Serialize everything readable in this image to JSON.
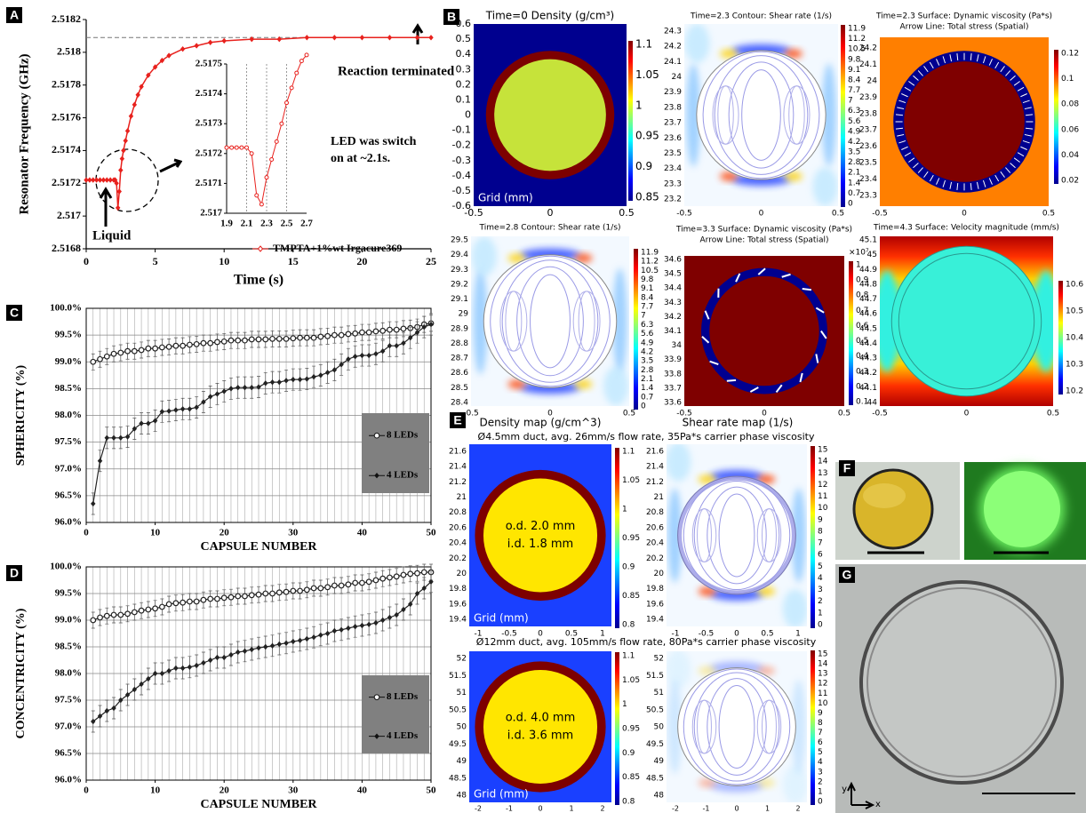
{
  "panel_labels": [
    "A",
    "B",
    "C",
    "D",
    "E",
    "F",
    "G"
  ],
  "chart_data": [
    {
      "type": "line",
      "xlabel": "Time (s)",
      "ylabel": "Resonator Frequency (GHz)",
      "x": [
        0,
        0.25,
        0.5,
        0.75,
        1,
        1.25,
        1.5,
        1.75,
        2,
        2.1,
        2.2,
        2.3,
        2.4,
        2.5,
        2.6,
        2.7,
        2.85,
        3,
        3.25,
        3.5,
        3.75,
        4,
        4.5,
        5,
        5.5,
        6,
        7,
        8,
        9,
        10,
        12,
        14,
        16,
        18,
        20,
        22,
        24,
        25
      ],
      "series": [
        {
          "name": "TMPTA+1%wt Irgacure369",
          "color": "#e8211d",
          "values": [
            2.51722,
            2.51722,
            2.51722,
            2.51722,
            2.51722,
            2.51722,
            2.51722,
            2.51722,
            2.51722,
            2.51722,
            2.5172,
            2.51705,
            2.51715,
            2.51728,
            2.51735,
            2.5174,
            2.51746,
            2.51752,
            2.51761,
            2.51768,
            2.51774,
            2.51779,
            2.51786,
            2.51791,
            2.51795,
            2.51798,
            2.51802,
            2.51804,
            2.51806,
            2.51807,
            2.51808,
            2.51808,
            2.51809,
            2.51809,
            2.51809,
            2.51809,
            2.51809,
            2.51809
          ]
        }
      ],
      "xlim": [
        0,
        25
      ],
      "xticks": [
        0,
        5,
        10,
        15,
        20,
        25
      ],
      "ylim": [
        2.5168,
        2.5182
      ],
      "yticks": [
        2.5168,
        2.517,
        2.5172,
        2.5174,
        2.5176,
        2.5178,
        2.518,
        2.5182
      ],
      "reference_line": 2.51809,
      "annotations": [
        "Reaction terminated",
        "LED was switch",
        "on at ~2.1s.",
        "Liquid"
      ],
      "inset": {
        "x": [
          1.9,
          1.95,
          2,
          2.05,
          2.1,
          2.15,
          2.2,
          2.25,
          2.3,
          2.35,
          2.4,
          2.45,
          2.5,
          2.55,
          2.6,
          2.65,
          2.7
        ],
        "values": [
          2.51722,
          2.51722,
          2.51722,
          2.51722,
          2.51722,
          2.5172,
          2.51706,
          2.51703,
          2.51712,
          2.51718,
          2.51724,
          2.5173,
          2.51737,
          2.51742,
          2.51747,
          2.51751,
          2.51753
        ],
        "xlim": [
          1.9,
          2.7
        ],
        "xticks": [
          1.9,
          2.1,
          2.3,
          2.5,
          2.7
        ],
        "ylim": [
          2.517,
          2.5175
        ],
        "yticks": [
          2.517,
          2.5171,
          2.5172,
          2.5173,
          2.5174,
          2.5175
        ]
      }
    },
    {
      "type": "line",
      "xlabel": "CAPSULE NUMBER",
      "ylabel": "SPHERICITY (%)",
      "grid": true,
      "x": [
        1,
        2,
        3,
        4,
        5,
        6,
        7,
        8,
        9,
        10,
        11,
        12,
        13,
        14,
        15,
        16,
        17,
        18,
        19,
        20,
        21,
        22,
        23,
        24,
        25,
        26,
        27,
        28,
        29,
        30,
        31,
        32,
        33,
        34,
        35,
        36,
        37,
        38,
        39,
        40,
        41,
        42,
        43,
        44,
        45,
        46,
        47,
        48,
        49,
        50
      ],
      "series": [
        {
          "name": "8 LEDs",
          "color": "#222222",
          "marker": "circle",
          "error": 0.15,
          "values": [
            99,
            99.05,
            99.1,
            99.15,
            99.17,
            99.2,
            99.2,
            99.22,
            99.25,
            99.25,
            99.27,
            99.28,
            99.3,
            99.3,
            99.32,
            99.33,
            99.35,
            99.35,
            99.37,
            99.38,
            99.4,
            99.4,
            99.4,
            99.42,
            99.42,
            99.42,
            99.43,
            99.43,
            99.43,
            99.44,
            99.45,
            99.45,
            99.45,
            99.47,
            99.48,
            99.5,
            99.5,
            99.52,
            99.53,
            99.55,
            99.55,
            99.57,
            99.58,
            99.6,
            99.6,
            99.62,
            99.63,
            99.65,
            99.7,
            99.72
          ]
        },
        {
          "name": "4 LEDs",
          "color": "#222222",
          "marker": "diamond",
          "error": 0.2,
          "values": [
            96.35,
            97.15,
            97.58,
            97.58,
            97.58,
            97.6,
            97.75,
            97.85,
            97.85,
            97.9,
            98.07,
            98.08,
            98.1,
            98.12,
            98.12,
            98.15,
            98.25,
            98.35,
            98.4,
            98.45,
            98.5,
            98.52,
            98.52,
            98.52,
            98.53,
            98.6,
            98.62,
            98.62,
            98.65,
            98.67,
            98.67,
            98.68,
            98.72,
            98.75,
            98.8,
            98.85,
            98.95,
            99.05,
            99.1,
            99.12,
            99.12,
            99.15,
            99.2,
            99.3,
            99.3,
            99.35,
            99.45,
            99.55,
            99.65,
            99.7
          ]
        }
      ],
      "xlim": [
        0,
        50
      ],
      "xticks": [
        0,
        10,
        20,
        30,
        40,
        50
      ],
      "ylim": [
        96,
        100
      ],
      "yticks": [
        {
          "value": 96,
          "label": "96.0%"
        },
        {
          "value": 96.5,
          "label": "96.5%"
        },
        {
          "value": 97,
          "label": "97.0%"
        },
        {
          "value": 97.5,
          "label": "97.5%"
        },
        {
          "value": 98,
          "label": "98.0%"
        },
        {
          "value": 98.5,
          "label": "98.5%"
        },
        {
          "value": 99,
          "label": "99.0%"
        },
        {
          "value": 99.5,
          "label": "99.5%"
        },
        {
          "value": 100,
          "label": "100.0%"
        }
      ]
    },
    {
      "type": "line",
      "xlabel": "CAPSULE NUMBER",
      "ylabel": "CONCENTRICITY (%)",
      "grid": true,
      "x": [
        1,
        2,
        3,
        4,
        5,
        6,
        7,
        8,
        9,
        10,
        11,
        12,
        13,
        14,
        15,
        16,
        17,
        18,
        19,
        20,
        21,
        22,
        23,
        24,
        25,
        26,
        27,
        28,
        29,
        30,
        31,
        32,
        33,
        34,
        35,
        36,
        37,
        38,
        39,
        40,
        41,
        42,
        43,
        44,
        45,
        46,
        47,
        48,
        49,
        50
      ],
      "series": [
        {
          "name": "8 LEDs",
          "color": "#222222",
          "marker": "circle",
          "error": 0.15,
          "values": [
            99,
            99.05,
            99.08,
            99.1,
            99.1,
            99.12,
            99.15,
            99.18,
            99.2,
            99.22,
            99.25,
            99.3,
            99.32,
            99.33,
            99.35,
            99.35,
            99.38,
            99.4,
            99.4,
            99.42,
            99.43,
            99.45,
            99.45,
            99.47,
            99.48,
            99.5,
            99.5,
            99.52,
            99.53,
            99.55,
            99.55,
            99.57,
            99.6,
            99.6,
            99.62,
            99.65,
            99.65,
            99.67,
            99.7,
            99.7,
            99.72,
            99.75,
            99.78,
            99.8,
            99.82,
            99.85,
            99.87,
            99.88,
            99.9,
            99.9
          ]
        },
        {
          "name": "4 LEDs",
          "color": "#222222",
          "marker": "diamond",
          "error": 0.2,
          "values": [
            97.1,
            97.2,
            97.3,
            97.35,
            97.5,
            97.6,
            97.7,
            97.8,
            97.9,
            98,
            98,
            98.05,
            98.1,
            98.1,
            98.12,
            98.15,
            98.2,
            98.25,
            98.3,
            98.3,
            98.35,
            98.4,
            98.42,
            98.45,
            98.48,
            98.5,
            98.52,
            98.55,
            98.57,
            98.6,
            98.62,
            98.65,
            98.68,
            98.72,
            98.75,
            98.8,
            98.82,
            98.85,
            98.88,
            98.9,
            98.92,
            98.95,
            99,
            99.05,
            99.1,
            99.2,
            99.3,
            99.5,
            99.6,
            99.72
          ]
        }
      ],
      "xlim": [
        0,
        50
      ],
      "xticks": [
        0,
        10,
        20,
        30,
        40,
        50
      ],
      "ylim": [
        96,
        100
      ],
      "yticks": [
        {
          "value": 96,
          "label": "96.0%"
        },
        {
          "value": 96.5,
          "label": "96.5%"
        },
        {
          "value": 97,
          "label": "97.0%"
        },
        {
          "value": 97.5,
          "label": "97.5%"
        },
        {
          "value": 98,
          "label": "98.0%"
        },
        {
          "value": 98.5,
          "label": "98.5%"
        },
        {
          "value": 99,
          "label": "99.0%"
        },
        {
          "value": 99.5,
          "label": "99.5%"
        },
        {
          "value": 100,
          "label": "100.0%"
        }
      ]
    }
  ],
  "simulations": [
    {
      "title": [
        "Time=0   Density (g/cm³)"
      ],
      "yticks": [
        "0.6",
        "0.5",
        "0.4",
        "0.3",
        "0.2",
        "0.1",
        "0",
        "-0.1",
        "-0.2",
        "-0.3",
        "-0.4",
        "-0.5",
        "-0.6"
      ],
      "xticks": [
        "-0.5",
        "0",
        "0.5"
      ],
      "colorbar": [
        "1.1",
        "1.05",
        "1",
        "0.95",
        "0.9",
        "0.85"
      ],
      "labels": [
        "Grid (mm)"
      ]
    },
    {
      "title": [
        "Time=2.3   Contour: Shear rate (1/s)"
      ],
      "yticks": [
        "24.3",
        "24.2",
        "24.1",
        "24",
        "23.9",
        "23.8",
        "23.7",
        "23.6",
        "23.5",
        "23.4",
        "23.3",
        "23.2"
      ],
      "xticks": [
        "-0.5",
        "0",
        "0.5"
      ],
      "colorbar": [
        "11.9",
        "11.2",
        "10.5",
        "9.8",
        "9.1",
        "8.4",
        "7.7",
        "7",
        "6.3",
        "5.6",
        "4.9",
        "4.2",
        "3.5",
        "2.8",
        "2.1",
        "1.4",
        "0.7",
        "0"
      ]
    },
    {
      "title": [
        "Time=2.3   Surface: Dynamic viscosity (Pa*s)",
        "Arrow Line: Total stress (Spatial)"
      ],
      "yticks": [
        "24.2",
        "24.1",
        "24",
        "23.9",
        "23.8",
        "23.7",
        "23.6",
        "23.5",
        "23.4",
        "23.3"
      ],
      "xticks": [
        "-0.5",
        "0",
        "0.5"
      ],
      "colorbar": [
        "0.12",
        "0.1",
        "0.08",
        "0.06",
        "0.04",
        "0.02"
      ]
    },
    {
      "title": [
        "Time=2.8   Contour: Shear rate (1/s)"
      ],
      "yticks": [
        "29.5",
        "29.4",
        "29.3",
        "29.2",
        "29.1",
        "29",
        "28.9",
        "28.8",
        "28.7",
        "28.6",
        "28.5",
        "28.4"
      ],
      "xticks": [
        "-0.5",
        "0",
        "0.5"
      ],
      "colorbar": [
        "11.9",
        "11.2",
        "10.5",
        "9.8",
        "9.1",
        "8.4",
        "7.7",
        "7",
        "6.3",
        "5.6",
        "4.9",
        "4.2",
        "3.5",
        "2.8",
        "2.1",
        "1.4",
        "0.7",
        "0"
      ]
    },
    {
      "title": [
        "Time=3.3   Surface: Dynamic viscosity (Pa*s)",
        "Arrow Line: Total stress (Spatial)"
      ],
      "yticks": [
        "34.6",
        "34.5",
        "34.4",
        "34.3",
        "34.2",
        "34.1",
        "34",
        "33.9",
        "33.8",
        "33.7",
        "33.6"
      ],
      "xticks": [
        "-0.5",
        "0",
        "0.5"
      ],
      "colorbar": [
        "1",
        "0.9",
        "0.8",
        "0.7",
        "0.6",
        "0.5",
        "0.4",
        "0.3",
        "0.2",
        "0.1"
      ],
      "colorbar_exponent": "×10⁷"
    },
    {
      "title": [
        "Time=4.3   Surface: Velocity magnitude (mm/s)"
      ],
      "yticks": [
        "45.1",
        "45",
        "44.9",
        "44.8",
        "44.7",
        "44.6",
        "44.5",
        "44.4",
        "44.3",
        "44.2",
        "44.1",
        "44"
      ],
      "xticks": [
        "-0.5",
        "0",
        "0.5"
      ],
      "colorbar": [
        "10.6",
        "10.5",
        "10.4",
        "10.3",
        "10.2"
      ]
    },
    {
      "yticks": [
        "21.6",
        "21.4",
        "21.2",
        "21",
        "20.8",
        "20.6",
        "20.4",
        "20.2",
        "20",
        "19.8",
        "19.6",
        "19.4"
      ],
      "xticks": [
        "-1",
        "-0.5",
        "0",
        "0.5",
        "1"
      ],
      "colorbar": [
        "1.1",
        "1.05",
        "1",
        "0.95",
        "0.9",
        "0.85",
        "0.8"
      ],
      "labels": [
        "o.d. 2.0 mm",
        "i.d. 1.8 mm",
        "Grid (mm)"
      ]
    },
    {
      "yticks": [
        "21.6",
        "21.4",
        "21.2",
        "21",
        "20.8",
        "20.6",
        "20.4",
        "20.2",
        "20",
        "19.8",
        "19.6",
        "19.4"
      ],
      "xticks": [
        "-1",
        "-0.5",
        "0",
        "0.5",
        "1"
      ],
      "colorbar": [
        "15",
        "14",
        "13",
        "12",
        "11",
        "10",
        "9",
        "8",
        "7",
        "6",
        "5",
        "4",
        "3",
        "2",
        "1",
        "0"
      ]
    },
    {
      "yticks": [
        "52",
        "51.5",
        "51",
        "50.5",
        "50",
        "49.5",
        "49",
        "48.5",
        "48"
      ],
      "xticks": [
        "-2",
        "-1",
        "0",
        "1",
        "2"
      ],
      "colorbar": [
        "1.1",
        "1.05",
        "1",
        "0.95",
        "0.9",
        "0.85",
        "0.8"
      ],
      "labels": [
        "o.d. 4.0 mm",
        "i.d. 3.6 mm",
        "Grid (mm)"
      ]
    },
    {
      "yticks": [
        "52",
        "51.5",
        "51",
        "50.5",
        "50",
        "49.5",
        "49",
        "48.5",
        "48"
      ],
      "xticks": [
        "-2",
        "-1",
        "0",
        "1",
        "2"
      ],
      "colorbar": [
        "15",
        "14",
        "13",
        "12",
        "11",
        "10",
        "9",
        "8",
        "7",
        "6",
        "5",
        "4",
        "3",
        "2",
        "1",
        "0"
      ]
    }
  ],
  "maps_headers": [
    "Density map (g/cm^3)",
    "Shear rate map (1/s)"
  ],
  "maps_conditions": [
    "Ø4.5mm duct, avg. 26mm/s flow rate, 35Pa*s carrier phase viscosity",
    "Ø12mm duct, avg. 105mm/s flow rate, 80Pa*s carrier phase viscosity"
  ],
  "photo_axes": [
    "y",
    "x"
  ]
}
